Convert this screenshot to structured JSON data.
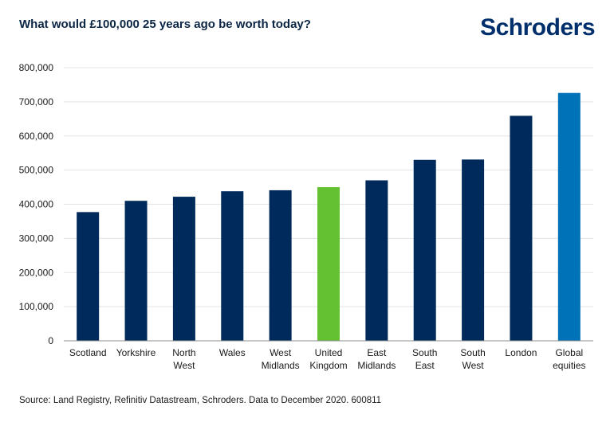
{
  "title": "What would £100,000 25 years ago be worth today?",
  "logo_text": "Schroders",
  "source": "Source: Land Registry, Refinitiv Datastream, Schroders. Data to December 2020. 600811",
  "colors": {
    "default_bar": "#002a5c",
    "highlight_uk": "#63c132",
    "highlight_equities": "#0072b8",
    "grid": "#e3e3e3",
    "axis": "#8c8c8c",
    "logo": "#002f6c"
  },
  "chart_data": {
    "type": "bar",
    "title": "What would £100,000 25 years ago be worth today?",
    "xlabel": "",
    "ylabel": "",
    "ylim": [
      0,
      800000
    ],
    "yticks": [
      0,
      100000,
      200000,
      300000,
      400000,
      500000,
      600000,
      700000,
      800000
    ],
    "ytick_labels": [
      "0",
      "100,000",
      "200,000",
      "300,000",
      "400,000",
      "500,000",
      "600,000",
      "700,000",
      "800,000"
    ],
    "grid": true,
    "categories": [
      [
        "Scotland"
      ],
      [
        "Yorkshire"
      ],
      [
        "North",
        "West"
      ],
      [
        "Wales"
      ],
      [
        "West",
        "Midlands"
      ],
      [
        "United",
        "Kingdom"
      ],
      [
        "East",
        "Midlands"
      ],
      [
        "South",
        "East"
      ],
      [
        "South",
        "West"
      ],
      [
        "London"
      ],
      [
        "Global",
        "equities"
      ]
    ],
    "values": [
      377000,
      410000,
      422000,
      438000,
      441000,
      450000,
      470000,
      530000,
      531000,
      659000,
      726000
    ],
    "bar_colors": [
      "#002a5c",
      "#002a5c",
      "#002a5c",
      "#002a5c",
      "#002a5c",
      "#63c132",
      "#002a5c",
      "#002a5c",
      "#002a5c",
      "#002a5c",
      "#0072b8"
    ]
  }
}
